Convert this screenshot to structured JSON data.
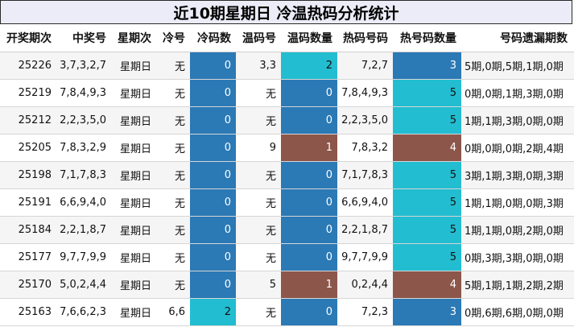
{
  "title": "近10期星期日 冷温热码分析统计",
  "headers": [
    "开奖期次",
    "中奖号",
    "星期次",
    "冷号",
    "冷码数",
    "温码号",
    "温码数量",
    "热码号码",
    "热号码数量",
    "号码遗漏期数"
  ],
  "colors": {
    "cold_blue": "#2b79b5",
    "cyan": "#22bdd0",
    "brown": "#8c564b"
  },
  "rows": [
    {
      "issue": "25226",
      "nums": "3,7,3,2,7",
      "weekday": "星期日",
      "cold": "无",
      "cold_count": "0",
      "warm": "3,3",
      "warm_count": "2",
      "hot": "7,2,7",
      "hot_count": "3",
      "miss": "5期,0期,5期,1期,0期"
    },
    {
      "issue": "25219",
      "nums": "7,8,4,9,3",
      "weekday": "星期日",
      "cold": "无",
      "cold_count": "0",
      "warm": "无",
      "warm_count": "0",
      "hot": "7,8,4,9,3",
      "hot_count": "5",
      "miss": "0期,0期,1期,3期,0期"
    },
    {
      "issue": "25212",
      "nums": "2,2,3,5,0",
      "weekday": "星期日",
      "cold": "无",
      "cold_count": "0",
      "warm": "无",
      "warm_count": "0",
      "hot": "2,2,3,5,0",
      "hot_count": "5",
      "miss": "1期,1期,3期,0期,0期"
    },
    {
      "issue": "25205",
      "nums": "7,8,3,2,9",
      "weekday": "星期日",
      "cold": "无",
      "cold_count": "0",
      "warm": "9",
      "warm_count": "1",
      "hot": "7,8,3,2",
      "hot_count": "4",
      "miss": "0期,0期,0期,2期,4期"
    },
    {
      "issue": "25198",
      "nums": "7,1,7,8,3",
      "weekday": "星期日",
      "cold": "无",
      "cold_count": "0",
      "warm": "无",
      "warm_count": "0",
      "hot": "7,1,7,8,3",
      "hot_count": "5",
      "miss": "3期,1期,3期,0期,3期"
    },
    {
      "issue": "25191",
      "nums": "6,6,9,4,0",
      "weekday": "星期日",
      "cold": "无",
      "cold_count": "0",
      "warm": "无",
      "warm_count": "0",
      "hot": "6,6,9,4,0",
      "hot_count": "5",
      "miss": "1期,1期,0期,0期,3期"
    },
    {
      "issue": "25184",
      "nums": "2,2,1,8,7",
      "weekday": "星期日",
      "cold": "无",
      "cold_count": "0",
      "warm": "无",
      "warm_count": "0",
      "hot": "2,2,1,8,7",
      "hot_count": "5",
      "miss": "1期,1期,0期,2期,0期"
    },
    {
      "issue": "25177",
      "nums": "9,7,7,9,9",
      "weekday": "星期日",
      "cold": "无",
      "cold_count": "0",
      "warm": "无",
      "warm_count": "0",
      "hot": "9,7,7,9,9",
      "hot_count": "5",
      "miss": "0期,3期,3期,0期,0期"
    },
    {
      "issue": "25170",
      "nums": "5,0,2,4,4",
      "weekday": "星期日",
      "cold": "无",
      "cold_count": "0",
      "warm": "5",
      "warm_count": "1",
      "hot": "0,2,4,4",
      "hot_count": "4",
      "miss": "5期,1期,1期,2期,2期"
    },
    {
      "issue": "25163",
      "nums": "7,6,6,2,3",
      "weekday": "星期日",
      "cold": "6,6",
      "cold_count": "2",
      "warm": "无",
      "warm_count": "0",
      "hot": "7,2,3",
      "hot_count": "3",
      "miss": "0期,6期,6期,0期,0期"
    }
  ]
}
